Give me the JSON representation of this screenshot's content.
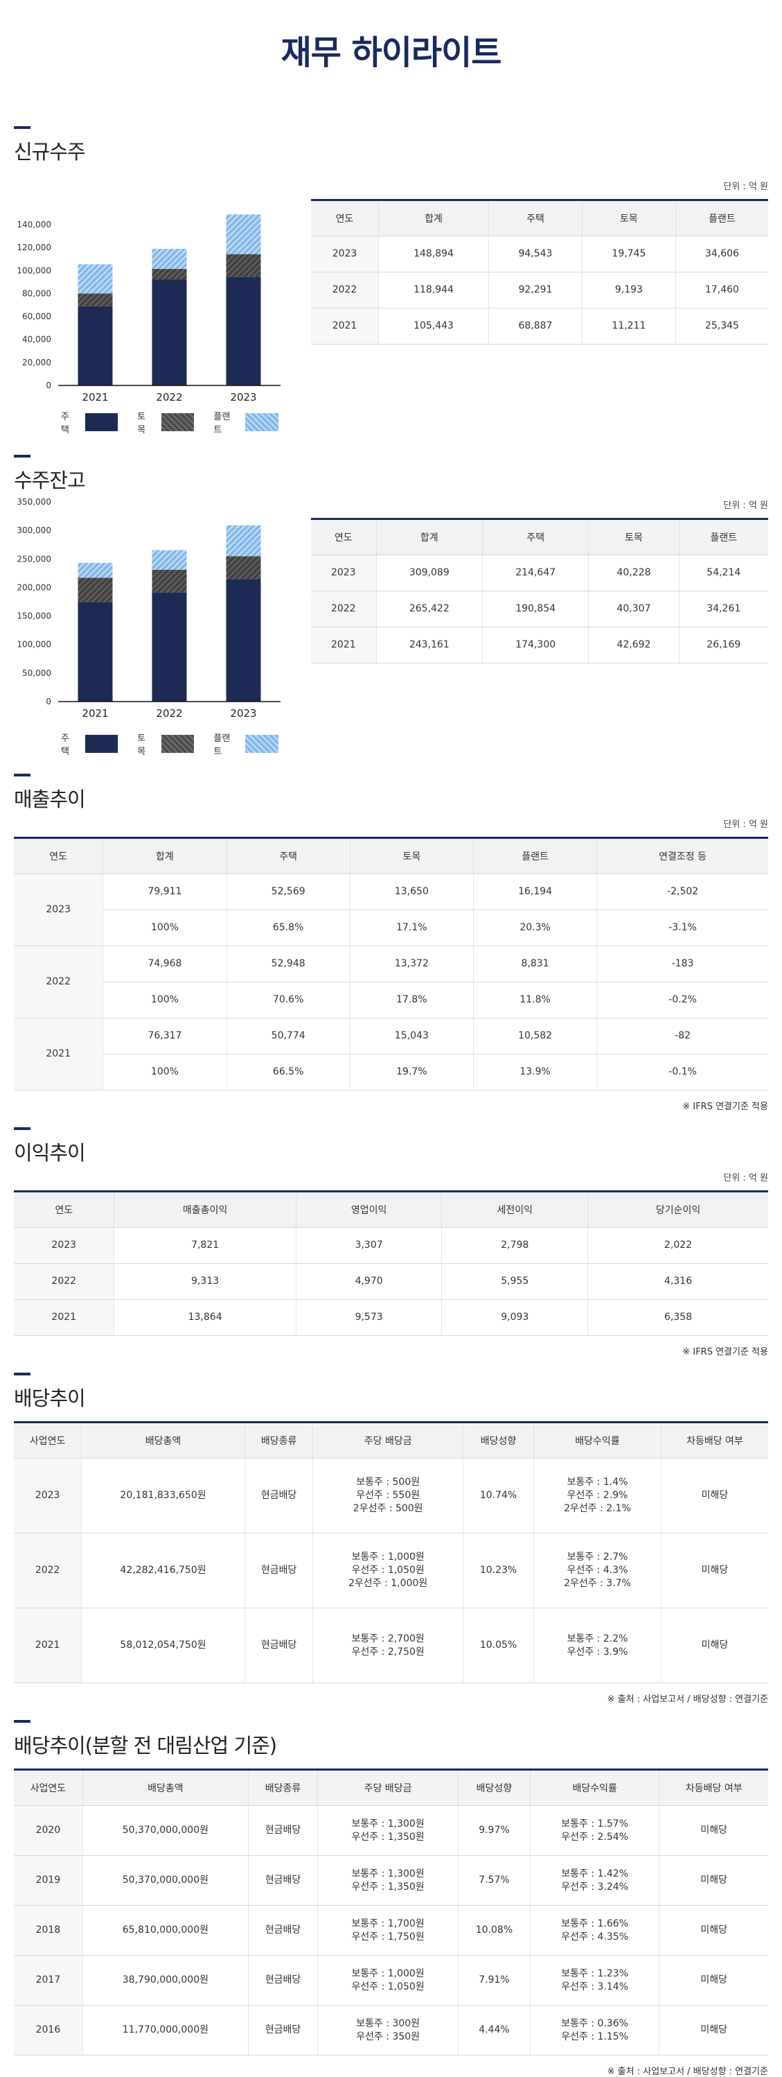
{
  "title": "재무 하이라이트",
  "legend": [
    "주택",
    "토목",
    "플랜트"
  ],
  "sections": {
    "orders": {
      "heading": "신규수주",
      "unit": "단위 : 억 원",
      "headers": [
        "연도",
        "합계",
        "주택",
        "토목",
        "플랜트"
      ],
      "rows": [
        [
          "2023",
          "148,894",
          "94,543",
          "19,745",
          "34,606"
        ],
        [
          "2022",
          "118,944",
          "92,291",
          "9,193",
          "17,460"
        ],
        [
          "2021",
          "105,443",
          "68,887",
          "11,211",
          "25,345"
        ]
      ]
    },
    "backlog": {
      "heading": "수주잔고",
      "unit": "단위 : 억 원",
      "headers": [
        "연도",
        "합계",
        "주택",
        "토목",
        "플랜트"
      ],
      "rows": [
        [
          "2023",
          "309,089",
          "214,647",
          "40,228",
          "54,214"
        ],
        [
          "2022",
          "265,422",
          "190,854",
          "40,307",
          "34,261"
        ],
        [
          "2021",
          "243,161",
          "174,300",
          "42,692",
          "26,169"
        ]
      ]
    },
    "sales": {
      "heading": "매출추이",
      "unit": "단위 : 억 원",
      "headers": [
        "연도",
        "합계",
        "주택",
        "토목",
        "플랜트",
        "연결조정 등"
      ],
      "groups": [
        {
          "year": "2023",
          "values": [
            "79,911",
            "52,569",
            "13,650",
            "16,194",
            "-2,502"
          ],
          "ratios": [
            "100%",
            "65.8%",
            "17.1%",
            "20.3%",
            "-3.1%"
          ]
        },
        {
          "year": "2022",
          "values": [
            "74,968",
            "52,948",
            "13,372",
            "8,831",
            "-183"
          ],
          "ratios": [
            "100%",
            "70.6%",
            "17.8%",
            "11.8%",
            "-0.2%"
          ]
        },
        {
          "year": "2021",
          "values": [
            "76,317",
            "50,774",
            "15,043",
            "10,582",
            "-82"
          ],
          "ratios": [
            "100%",
            "66.5%",
            "19.7%",
            "13.9%",
            "-0.1%"
          ]
        }
      ],
      "note": "※ IFRS 연결기준 적용"
    },
    "profit": {
      "heading": "이익추이",
      "unit": "단위 : 억 원",
      "headers": [
        "연도",
        "매출총이익",
        "영업이익",
        "세전이익",
        "당기순이익"
      ],
      "rows": [
        [
          "2023",
          "7,821",
          "3,307",
          "2,798",
          "2,022"
        ],
        [
          "2022",
          "9,313",
          "4,970",
          "5,955",
          "4,316"
        ],
        [
          "2021",
          "13,864",
          "9,573",
          "9,093",
          "6,358"
        ]
      ],
      "note": "※ IFRS 연결기준 적용"
    },
    "dividend": {
      "heading": "배당추이",
      "headers": [
        "사업연도",
        "배당총액",
        "배당종류",
        "주당 배당금",
        "배당성향",
        "배당수익률",
        "차등배당 여부"
      ],
      "rows": [
        [
          "2023",
          "20,181,833,650원",
          "현금배당",
          "보통주 : 500원\n우선주 : 550원\n2우선주 : 500원",
          "10.74%",
          "보통주 : 1.4%\n우선주 : 2.9%\n2우선주 : 2.1%",
          "미해당"
        ],
        [
          "2022",
          "42,282,416,750원",
          "현금배당",
          "보통주 : 1,000원\n우선주 : 1,050원\n2우선주 : 1,000원",
          "10.23%",
          "보통주 : 2.7%\n우선주 : 4.3%\n2우선주 : 3.7%",
          "미해당"
        ],
        [
          "2021",
          "58,012,054,750원",
          "현금배당",
          "보통주 : 2,700원\n우선주 : 2,750원",
          "10.05%",
          "보통주 : 2.2%\n우선주 : 3.9%",
          "미해당"
        ]
      ],
      "note": "※ 출처 : 사업보고서 / 배당성향 : 연결기준"
    },
    "dividend_pre": {
      "heading": "배당추이(분할 전 대림산업 기준)",
      "headers": [
        "사업연도",
        "배당총액",
        "배당종류",
        "주당 배당금",
        "배당성향",
        "배당수익률",
        "차등배당 여부"
      ],
      "rows": [
        [
          "2020",
          "50,370,000,000원",
          "현금배당",
          "보통주 : 1,300원\n우선주 : 1,350원",
          "9.97%",
          "보통주 : 1.57%\n우선주 : 2.54%",
          "미해당"
        ],
        [
          "2019",
          "50,370,000,000원",
          "현금배당",
          "보통주 : 1,300원\n우선주 : 1,350원",
          "7.57%",
          "보통주 : 1.42%\n우선주 : 3.24%",
          "미해당"
        ],
        [
          "2018",
          "65,810,000,000원",
          "현금배당",
          "보통주 : 1,700원\n우선주 : 1,750원",
          "10.08%",
          "보통주 : 1.66%\n우선주 : 4.35%",
          "미해당"
        ],
        [
          "2017",
          "38,790,000,000원",
          "현금배당",
          "보통주 : 1,000원\n우선주 : 1,050원",
          "7.91%",
          "보통주 : 1.23%\n우선주 : 3.14%",
          "미해당"
        ],
        [
          "2016",
          "11,770,000,000원",
          "현금배당",
          "보통주 : 300원\n우선주 : 350원",
          "4.44%",
          "보통주 : 0.36%\n우선주 : 1.15%",
          "미해당"
        ]
      ],
      "note": "※ 출처 : 사업보고서 / 배당성향 : 연결기준"
    }
  },
  "colors": {
    "house": "#1d2a55",
    "civil": "#555555",
    "plant": "#8fc0ee",
    "accent": "#1a2a5e"
  },
  "chart_data": [
    {
      "type": "bar",
      "stacked": true,
      "categories": [
        "2021",
        "2022",
        "2023"
      ],
      "series": [
        {
          "name": "주택",
          "values": [
            68887,
            92291,
            94543
          ]
        },
        {
          "name": "토목",
          "values": [
            11211,
            9193,
            19745
          ]
        },
        {
          "name": "플랜트",
          "values": [
            25345,
            17460,
            34606
          ]
        }
      ],
      "ylim": [
        0,
        140000
      ],
      "yticks": [
        0,
        20000,
        40000,
        60000,
        80000,
        100000,
        120000,
        140000
      ],
      "legend": "bottom"
    },
    {
      "type": "bar",
      "stacked": true,
      "categories": [
        "2021",
        "2022",
        "2023"
      ],
      "series": [
        {
          "name": "주택",
          "values": [
            174300,
            190854,
            214647
          ]
        },
        {
          "name": "토목",
          "values": [
            42692,
            40307,
            40228
          ]
        },
        {
          "name": "플랜트",
          "values": [
            26169,
            34261,
            54214
          ]
        }
      ],
      "ylim": [
        0,
        350000
      ],
      "yticks": [
        0,
        50000,
        100000,
        150000,
        200000,
        250000,
        300000,
        350000
      ],
      "legend": "bottom"
    }
  ]
}
